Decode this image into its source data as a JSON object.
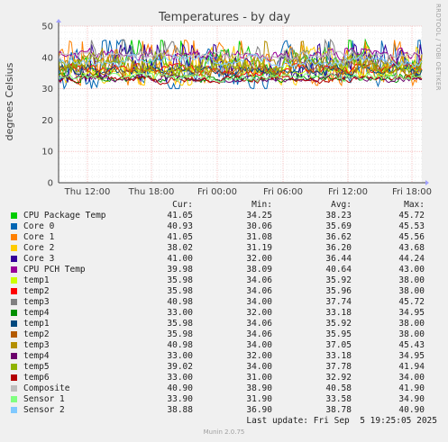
{
  "chart_data": {
    "type": "line",
    "title": "Temperatures - by day",
    "ylabel": "degrees Celsius",
    "ylim": [
      0,
      50
    ],
    "yticks": [
      "0",
      "10",
      "20",
      "30",
      "40",
      "50"
    ],
    "xticks": [
      "Thu 12:00",
      "Thu 18:00",
      "Fri 00:00",
      "Fri 06:00",
      "Fri 12:00",
      "Fri 18:00"
    ],
    "grid": true,
    "columns": [
      "Cur:",
      "Min:",
      "Avg:",
      "Max:"
    ],
    "series": [
      {
        "name": "CPU Package Temp",
        "color": "#00cc00",
        "cur": "41.05",
        "min": "34.25",
        "avg": "38.23",
        "max": "45.72"
      },
      {
        "name": "Core 0",
        "color": "#0066b3",
        "cur": "40.93",
        "min": "30.06",
        "avg": "35.69",
        "max": "45.53"
      },
      {
        "name": "Core 1",
        "color": "#ff8000",
        "cur": "41.05",
        "min": "31.08",
        "avg": "36.62",
        "max": "45.56"
      },
      {
        "name": "Core 2",
        "color": "#ffcc00",
        "cur": "38.02",
        "min": "31.19",
        "avg": "36.20",
        "max": "43.68"
      },
      {
        "name": "Core 3",
        "color": "#330099",
        "cur": "41.00",
        "min": "32.00",
        "avg": "36.44",
        "max": "44.24"
      },
      {
        "name": "CPU PCH Temp",
        "color": "#990099",
        "cur": "39.98",
        "min": "38.09",
        "avg": "40.64",
        "max": "43.00"
      },
      {
        "name": "temp1",
        "color": "#ccff00",
        "cur": "35.98",
        "min": "34.06",
        "avg": "35.92",
        "max": "38.00"
      },
      {
        "name": "temp2",
        "color": "#ff0000",
        "cur": "35.98",
        "min": "34.06",
        "avg": "35.96",
        "max": "38.00"
      },
      {
        "name": "temp3",
        "color": "#808080",
        "cur": "40.98",
        "min": "34.00",
        "avg": "37.74",
        "max": "45.72"
      },
      {
        "name": "temp4",
        "color": "#008f00",
        "cur": "33.00",
        "min": "32.00",
        "avg": "33.18",
        "max": "34.95"
      },
      {
        "name": "temp1",
        "color": "#00487d",
        "cur": "35.98",
        "min": "34.06",
        "avg": "35.92",
        "max": "38.00"
      },
      {
        "name": "temp2",
        "color": "#b35a00",
        "cur": "35.98",
        "min": "34.06",
        "avg": "35.95",
        "max": "38.00"
      },
      {
        "name": "temp3",
        "color": "#b38f00",
        "cur": "40.98",
        "min": "34.00",
        "avg": "37.05",
        "max": "45.43"
      },
      {
        "name": "temp4",
        "color": "#6b006b",
        "cur": "33.00",
        "min": "32.00",
        "avg": "33.18",
        "max": "34.95"
      },
      {
        "name": "temp5",
        "color": "#8fb300",
        "cur": "39.02",
        "min": "34.00",
        "avg": "37.78",
        "max": "41.94"
      },
      {
        "name": "temp6",
        "color": "#b30000",
        "cur": "33.00",
        "min": "31.00",
        "avg": "32.92",
        "max": "34.00"
      },
      {
        "name": "Composite",
        "color": "#bebebe",
        "cur": "40.90",
        "min": "38.90",
        "avg": "40.58",
        "max": "41.90"
      },
      {
        "name": "Sensor 1",
        "color": "#80ff80",
        "cur": "33.90",
        "min": "31.90",
        "avg": "33.58",
        "max": "34.90"
      },
      {
        "name": "Sensor 2",
        "color": "#80c9ff",
        "cur": "38.88",
        "min": "36.90",
        "avg": "38.78",
        "max": "40.90"
      }
    ]
  },
  "side_label": "RRDTOOL / TOBI OETIKER",
  "last_update": "Last update: Fri Sep  5 19:25:05 2025",
  "footer": "Munin 2.0.75"
}
